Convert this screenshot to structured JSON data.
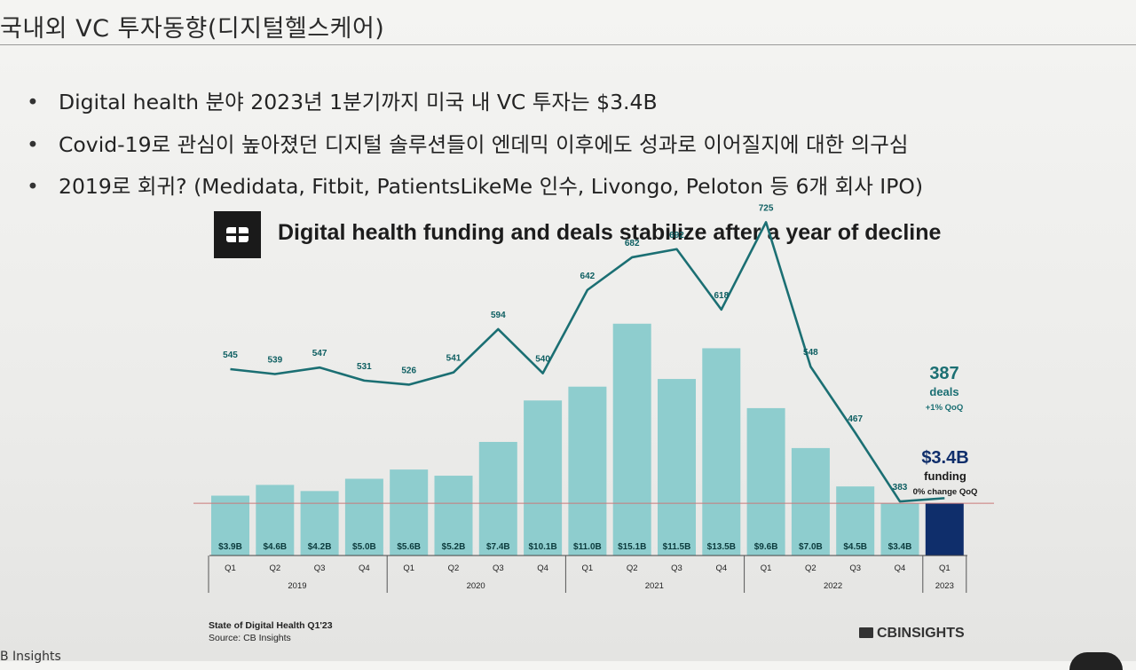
{
  "slide": {
    "title": "국내외 VC 투자동향(디지털헬스케어)",
    "bullets": [
      "Digital health 분야 2023년 1분기까지 미국 내 VC 투자는 $3.4B",
      "Covid-19로 관심이 높아졌던 디지털 솔루션들이 엔데믹 이후에도 성과로 이어질지에 대한 의구심",
      "2019로 회귀? (Medidata, Fitbit, PatientsLikeMe 인수, Livongo, Peloton 등 6개 회사 IPO)"
    ],
    "corner_text": "B Insights"
  },
  "chart_data": {
    "type": "bar+line",
    "title": "Digital health funding and deals stabilize after a year of decline",
    "quarters": [
      "Q1",
      "Q2",
      "Q3",
      "Q4",
      "Q1",
      "Q2",
      "Q3",
      "Q4",
      "Q1",
      "Q2",
      "Q3",
      "Q4",
      "Q1",
      "Q2",
      "Q3",
      "Q4",
      "Q1"
    ],
    "years": [
      {
        "label": "2019",
        "count": 4
      },
      {
        "label": "2020",
        "count": 4
      },
      {
        "label": "2021",
        "count": 4
      },
      {
        "label": "2022",
        "count": 4
      },
      {
        "label": "2023",
        "count": 1
      }
    ],
    "series": [
      {
        "name": "funding",
        "unit": "$B",
        "values": [
          3.9,
          4.6,
          4.2,
          5.0,
          5.6,
          5.2,
          7.4,
          10.1,
          11.0,
          15.1,
          11.5,
          13.5,
          9.6,
          7.0,
          4.5,
          3.4,
          3.4
        ],
        "labels": [
          "$3.9B",
          "$4.6B",
          "$4.2B",
          "$5.0B",
          "$5.6B",
          "$5.2B",
          "$7.4B",
          "$10.1B",
          "$11.0B",
          "$15.1B",
          "$11.5B",
          "$13.5B",
          "$9.6B",
          "$7.0B",
          "$4.5B",
          "$3.4B",
          ""
        ]
      },
      {
        "name": "deals",
        "values": [
          545,
          539,
          547,
          531,
          526,
          541,
          594,
          540,
          642,
          682,
          692,
          618,
          725,
          548,
          467,
          383,
          387
        ],
        "labels": [
          "545",
          "539",
          "547",
          "531",
          "526",
          "541",
          "594",
          "540",
          "642",
          "682",
          "692",
          "618",
          "725",
          "548",
          "467",
          "383",
          ""
        ]
      }
    ],
    "annotations": {
      "deals_value": "387",
      "deals_label": "deals",
      "deals_change": "+1% QoQ",
      "funding_value": "$3.4B",
      "funding_label": "funding",
      "funding_change": "0% change QoQ"
    },
    "source_title": "State of Digital Health Q1'23",
    "source": "Source: CB Insights",
    "brand": "CBINSIGHTS"
  },
  "colors": {
    "bar": "#8ecdce",
    "bar_highlight": "#0f2e6b",
    "line": "#1b6f73",
    "label": "#0d5e61",
    "reference": "#c97a7a"
  }
}
